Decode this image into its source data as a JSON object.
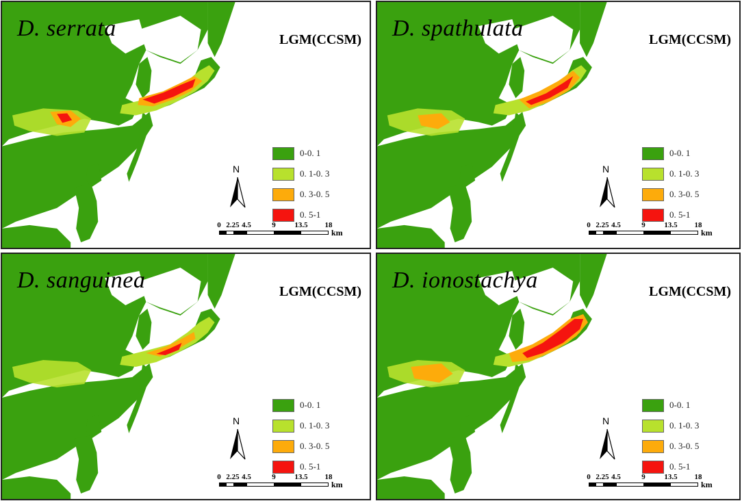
{
  "model_label": "LGM(CCSM)",
  "colors": {
    "ocean": "#ffffff",
    "low": "#3aa10f",
    "mid_low": "#b8e12d",
    "mid_high": "#fdab0b",
    "high": "#f5140f",
    "border": "#222222"
  },
  "legend": [
    {
      "label": "0-0. 1",
      "color": "#3aa10f"
    },
    {
      "label": "0. 1-0. 3",
      "color": "#b8e12d"
    },
    {
      "label": "0. 3-0. 5",
      "color": "#fdab0b"
    },
    {
      "label": "0. 5-1",
      "color": "#f5140f"
    }
  ],
  "north_label": "N",
  "scale": {
    "ticks": [
      "0",
      "2.25",
      "4.5",
      "9",
      "13.5",
      "18"
    ],
    "unit": "km"
  },
  "panels": [
    {
      "species": "D. serrata",
      "suitability": "high-central"
    },
    {
      "species": "D. spathulata",
      "suitability": "high-central-east"
    },
    {
      "species": "D. sanguinea",
      "suitability": "moderate"
    },
    {
      "species": "D. ionostachya",
      "suitability": "high-broad"
    }
  ]
}
